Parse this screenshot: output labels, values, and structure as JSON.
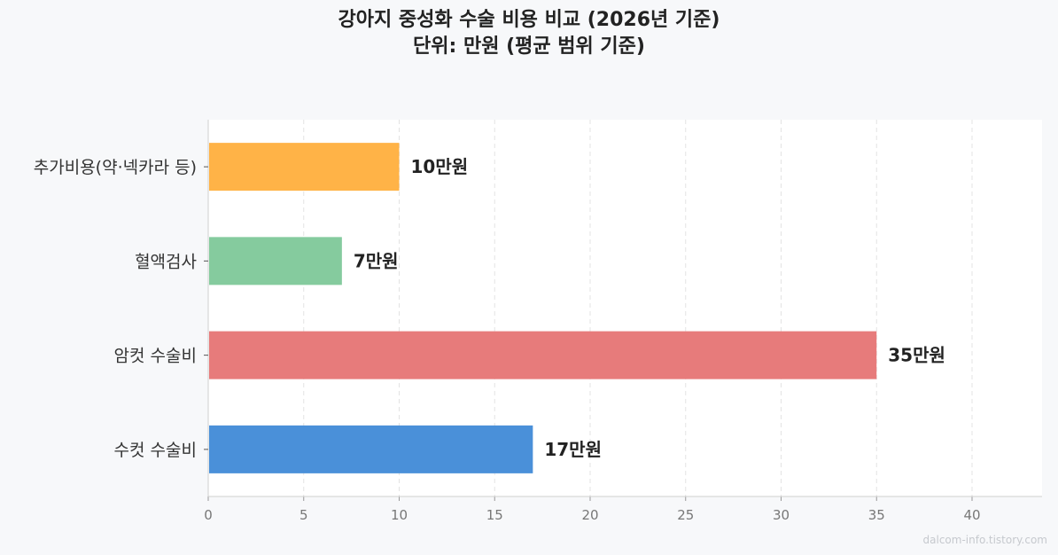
{
  "title": {
    "line1": "강아지 중성화 수술 비용 비교 (2026년 기준)",
    "line2": "단위: 만원 (평균 범위 기준)"
  },
  "watermark": "dalcom-info.tistory.com",
  "chart_data": {
    "type": "bar",
    "orientation": "horizontal",
    "title": "강아지 중성화 수술 비용 비교 (2026년 기준)",
    "subtitle": "단위: 만원 (평균 범위 기준)",
    "categories": [
      "추가비용(약·넥카라 등)",
      "혈액검사",
      "암컷 수술비",
      "수컷 수술비"
    ],
    "values": [
      10,
      7,
      35,
      17
    ],
    "value_labels": [
      "10만원",
      "7만원",
      "35만원",
      "17만원"
    ],
    "colors": [
      "#ffb347",
      "#85cb9e",
      "#e77b7b",
      "#4a90d9"
    ],
    "xticks": [
      0,
      5,
      10,
      15,
      20,
      25,
      30,
      35,
      40
    ],
    "xlim": [
      0,
      43.7
    ],
    "xlabel": "",
    "ylabel": "",
    "grid": "x dashed",
    "legend": "none"
  }
}
